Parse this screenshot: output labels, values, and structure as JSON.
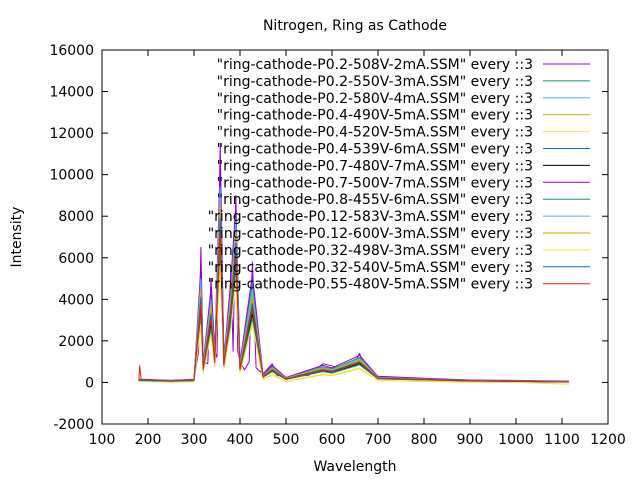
{
  "chart_data": {
    "type": "line",
    "title": "Nitrogen, Ring as Cathode",
    "xlabel": "Wavelength",
    "ylabel": "Intensity",
    "xlim": [
      100,
      1200
    ],
    "ylim": [
      -2000,
      16000
    ],
    "xticks": [
      100,
      200,
      300,
      400,
      500,
      600,
      700,
      800,
      900,
      1000,
      1100,
      1200
    ],
    "yticks": [
      -2000,
      0,
      2000,
      4000,
      6000,
      8000,
      10000,
      12000,
      14000,
      16000
    ],
    "legend_position": "top-right",
    "grid": false,
    "series": [
      {
        "name": "\"ring-cathode-P0.2-508V-2mA.SSM\" every ::3",
        "color": "#9400d3",
        "x": [
          180,
          250,
          300,
          310,
          315,
          320,
          330,
          337,
          345,
          350,
          357,
          365,
          370,
          375,
          380,
          385,
          391,
          395,
          400,
          405,
          410,
          420,
          427,
          435,
          450,
          470,
          480,
          500,
          550,
          580,
          600,
          620,
          650,
          660,
          670,
          700,
          750,
          800,
          900,
          1000,
          1050,
          1100,
          1115
        ],
        "y": [
          150,
          100,
          150,
          1500,
          6500,
          1000,
          900,
          5000,
          1500,
          1200,
          11500,
          1200,
          1800,
          2000,
          5500,
          1500,
          9000,
          1500,
          1000,
          800,
          600,
          1000,
          5800,
          700,
          400,
          900,
          350,
          250,
          350,
          900,
          800,
          600,
          1000,
          1400,
          800,
          300,
          250,
          200,
          120,
          100,
          80,
          70,
          60
        ]
      },
      {
        "name": "\"ring-cathode-P0.2-550V-3mA.SSM\" every ::3",
        "color": "#009e73",
        "x": [
          180,
          250,
          300,
          315,
          320,
          337,
          345,
          357,
          365,
          380,
          391,
          400,
          427,
          450,
          470,
          500,
          580,
          600,
          660,
          700,
          800,
          900,
          1000,
          1115
        ],
        "y": [
          120,
          90,
          130,
          5200,
          900,
          4200,
          1300,
          9800,
          1100,
          4500,
          8200,
          900,
          4800,
          350,
          750,
          220,
          750,
          650,
          1200,
          260,
          170,
          100,
          80,
          50
        ]
      },
      {
        "name": "\"ring-cathode-P0.2-580V-4mA.SSM\" every ::3",
        "color": "#56b4e9",
        "x": [
          180,
          250,
          300,
          315,
          320,
          337,
          345,
          357,
          365,
          380,
          391,
          400,
          427,
          450,
          470,
          500,
          580,
          600,
          660,
          700,
          800,
          900,
          1000,
          1115
        ],
        "y": [
          110,
          80,
          120,
          4800,
          800,
          3800,
          1200,
          9000,
          1000,
          4100,
          7600,
          800,
          4300,
          320,
          700,
          200,
          700,
          600,
          1100,
          240,
          160,
          90,
          70,
          40
        ]
      },
      {
        "name": "\"ring-cathode-P0.4-490V-5mA.SSM\" every ::3",
        "color": "#e69f00",
        "x": [
          180,
          250,
          300,
          315,
          320,
          337,
          345,
          357,
          365,
          380,
          391,
          400,
          427,
          450,
          470,
          500,
          580,
          600,
          660,
          700,
          800,
          900,
          1000,
          1115
        ],
        "y": [
          100,
          70,
          110,
          4300,
          700,
          3400,
          1100,
          8200,
          900,
          3700,
          6900,
          700,
          3900,
          300,
          650,
          180,
          650,
          560,
          1050,
          220,
          150,
          80,
          60,
          30
        ]
      },
      {
        "name": "\"ring-cathode-P0.4-520V-5mA.SSM\" every ::3",
        "color": "#f0e442",
        "x": [
          180,
          250,
          300,
          315,
          320,
          337,
          345,
          357,
          365,
          380,
          391,
          400,
          427,
          450,
          470,
          500,
          580,
          600,
          660,
          700,
          800,
          900,
          1000,
          1115
        ],
        "y": [
          60,
          20,
          40,
          3000,
          500,
          2500,
          800,
          6000,
          700,
          2800,
          5200,
          500,
          3000,
          150,
          400,
          50,
          400,
          350,
          700,
          100,
          50,
          20,
          10,
          -80
        ]
      },
      {
        "name": "\"ring-cathode-P0.4-539V-6mA.SSM\" every ::3",
        "color": "#0072b2",
        "x": [
          180,
          250,
          300,
          315,
          320,
          337,
          345,
          357,
          365,
          380,
          391,
          400,
          427,
          450,
          470,
          500,
          580,
          600,
          660,
          700,
          800,
          900,
          1000,
          1115
        ],
        "y": [
          90,
          60,
          100,
          3900,
          650,
          3100,
          1000,
          7500,
          850,
          3400,
          6400,
          650,
          3600,
          280,
          600,
          170,
          600,
          520,
          980,
          200,
          140,
          75,
          55,
          25
        ]
      },
      {
        "name": "\"ring-cathode-P0.7-480V-7mA.SSM\" every ::3",
        "color": "#000000",
        "x": [
          180,
          250,
          300,
          315,
          320,
          337,
          345,
          357,
          365,
          380,
          391,
          400,
          427,
          450,
          470,
          500,
          580,
          600,
          660,
          700,
          800,
          900,
          1000,
          1115
        ],
        "y": [
          80,
          50,
          90,
          3500,
          600,
          2800,
          900,
          6800,
          800,
          3100,
          5800,
          600,
          3300,
          260,
          560,
          150,
          560,
          480,
          900,
          180,
          130,
          70,
          50,
          20
        ]
      },
      {
        "name": "\"ring-cathode-P0.7-500V-7mA.SSM\" every ::3",
        "color": "#9400d3",
        "x": [
          180,
          250,
          300,
          315,
          320,
          337,
          345,
          357,
          365,
          380,
          391,
          400,
          427,
          450,
          470,
          500,
          580,
          600,
          660,
          700,
          800,
          900,
          1000,
          1115
        ],
        "y": [
          130,
          95,
          140,
          5600,
          950,
          4500,
          1400,
          10500,
          1150,
          4900,
          8600,
          950,
          5200,
          380,
          820,
          240,
          820,
          700,
          1300,
          280,
          180,
          110,
          90,
          55
        ]
      },
      {
        "name": "\"ring-cathode-P0.8-455V-6mA.SSM\" every ::3",
        "color": "#009e73",
        "x": [
          180,
          250,
          300,
          315,
          320,
          337,
          345,
          357,
          365,
          380,
          391,
          400,
          427,
          450,
          470,
          500,
          580,
          600,
          660,
          700,
          800,
          900,
          1000,
          1115
        ],
        "y": [
          70,
          40,
          80,
          3200,
          550,
          2600,
          850,
          6300,
          750,
          2900,
          5500,
          550,
          3100,
          240,
          520,
          140,
          520,
          450,
          850,
          170,
          120,
          65,
          45,
          15
        ]
      },
      {
        "name": "\"ring-cathode-P0.12-583V-3mA.SSM\" every ::3",
        "color": "#56b4e9",
        "x": [
          180,
          250,
          300,
          315,
          320,
          337,
          345,
          357,
          365,
          380,
          391,
          400,
          427,
          450,
          470,
          500,
          580,
          600,
          660,
          700,
          800,
          900,
          1000,
          1115
        ],
        "y": [
          115,
          85,
          125,
          5000,
          850,
          4000,
          1250,
          9400,
          1050,
          4300,
          7900,
          850,
          4500,
          330,
          720,
          210,
          720,
          620,
          1150,
          250,
          165,
          95,
          75,
          45
        ]
      },
      {
        "name": "\"ring-cathode-P0.12-600V-3mA.SSM\" every ::3",
        "color": "#e69f00",
        "x": [
          180,
          250,
          300,
          315,
          320,
          337,
          345,
          357,
          365,
          380,
          391,
          400,
          427,
          450,
          470,
          500,
          580,
          600,
          660,
          700,
          800,
          900,
          1000,
          1115
        ],
        "y": [
          105,
          75,
          115,
          4500,
          750,
          3600,
          1150,
          8600,
          950,
          3900,
          7200,
          750,
          4100,
          310,
          680,
          190,
          680,
          580,
          1080,
          230,
          155,
          85,
          65,
          35
        ]
      },
      {
        "name": "\"ring-cathode-P0.32-498V-3mA.SSM\" every ::3",
        "color": "#f0e442",
        "x": [
          180,
          250,
          300,
          315,
          320,
          337,
          345,
          357,
          365,
          380,
          391,
          400,
          427,
          450,
          470,
          500,
          580,
          600,
          660,
          700,
          800,
          900,
          1000,
          1115
        ],
        "y": [
          50,
          10,
          30,
          2800,
          450,
          2300,
          750,
          5600,
          650,
          2600,
          4900,
          450,
          2800,
          130,
          370,
          40,
          370,
          320,
          650,
          90,
          40,
          10,
          0,
          -90
        ]
      },
      {
        "name": "\"ring-cathode-P0.32-540V-5mA.SSM\" every ::3",
        "color": "#0072b2",
        "x": [
          180,
          250,
          300,
          315,
          320,
          337,
          345,
          357,
          365,
          380,
          391,
          400,
          427,
          450,
          470,
          500,
          580,
          600,
          660,
          700,
          800,
          900,
          1000,
          1115
        ],
        "y": [
          95,
          65,
          105,
          4100,
          680,
          3300,
          1050,
          7900,
          880,
          3600,
          6700,
          680,
          3800,
          290,
          620,
          175,
          620,
          540,
          1000,
          210,
          145,
          78,
          58,
          28
        ]
      },
      {
        "name": "\"ring-cathode-P0.55-480V-5mA.SSM\" every ::3",
        "color": "#e51e10",
        "x": [
          180,
          182,
          185,
          250,
          300,
          315,
          320,
          337,
          345,
          357,
          365,
          380,
          391,
          400,
          427,
          450,
          470,
          500,
          580,
          600,
          660,
          700,
          800,
          900,
          1000,
          1115
        ],
        "y": [
          100,
          800,
          150,
          80,
          120,
          3700,
          620,
          3000,
          950,
          7200,
          820,
          3300,
          6100,
          620,
          3500,
          270,
          580,
          160,
          580,
          500,
          950,
          190,
          135,
          72,
          52,
          22
        ]
      }
    ]
  }
}
